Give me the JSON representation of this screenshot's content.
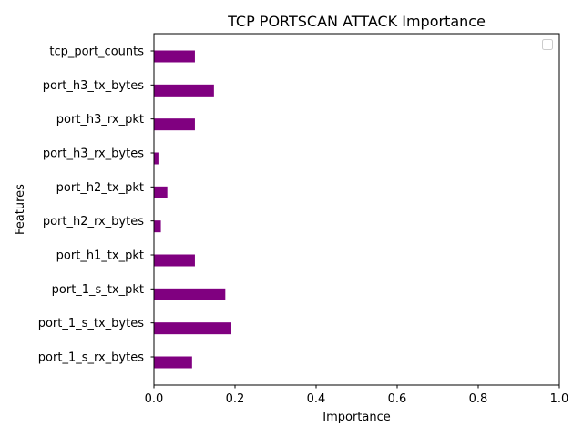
{
  "chart_data": {
    "type": "bar",
    "orientation": "horizontal",
    "title": "TCP PORTSCAN ATTACK Importance",
    "xlabel": "Importance",
    "ylabel": "Features",
    "xlim": [
      0,
      1
    ],
    "xticks": [
      "0.0",
      "0.2",
      "0.4",
      "0.6",
      "0.8",
      "1.0"
    ],
    "xtick_values": [
      0,
      0.2,
      0.4,
      0.6,
      0.8,
      1.0
    ],
    "grid": false,
    "legend": "top-right",
    "legend_entries": [],
    "bar_color": "#800080",
    "categories": [
      "port_1_s_rx_bytes",
      "port_1_s_tx_bytes",
      "port_1_s_tx_pkt",
      "port_h1_tx_pkt",
      "port_h2_rx_bytes",
      "port_h2_tx_pkt",
      "port_h3_rx_bytes",
      "port_h3_rx_pkt",
      "port_h3_tx_bytes",
      "tcp_port_counts"
    ],
    "values": [
      0.094,
      0.191,
      0.176,
      0.101,
      0.017,
      0.033,
      0.011,
      0.101,
      0.148,
      0.101
    ]
  }
}
